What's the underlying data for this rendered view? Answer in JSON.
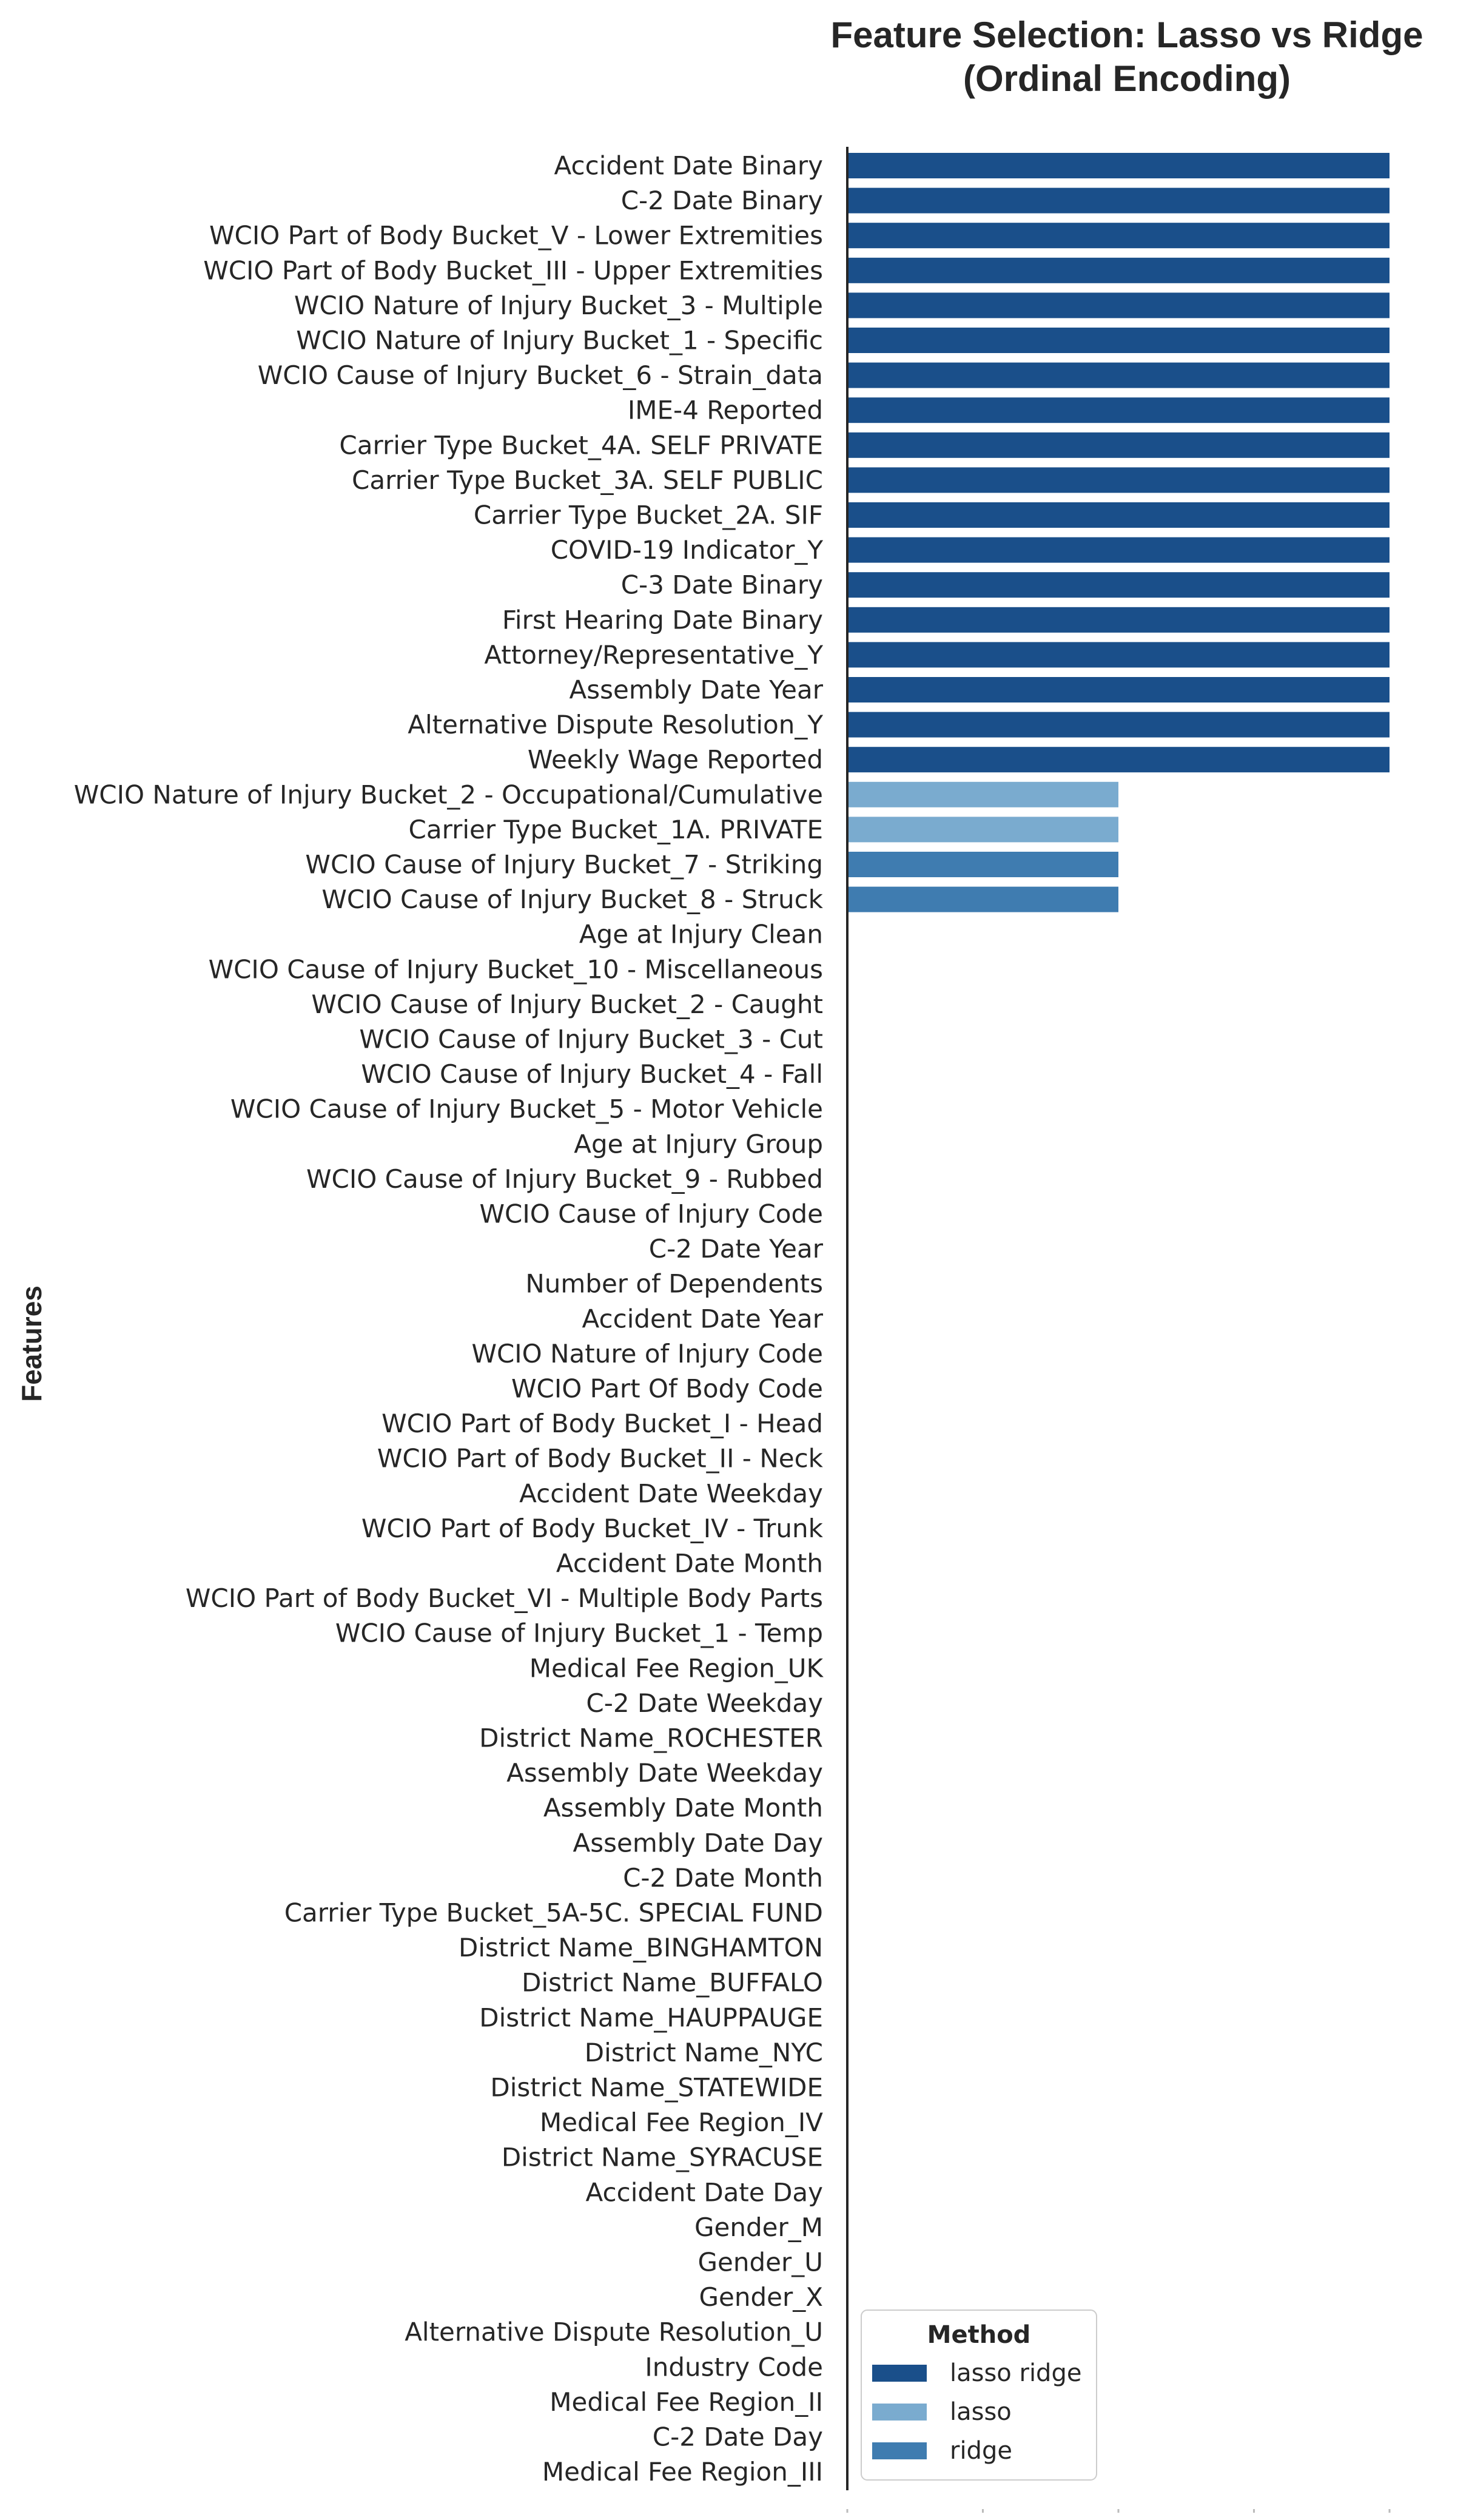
{
  "chart_data": {
    "type": "bar",
    "orientation": "horizontal",
    "title": "Feature Selection: Lasso vs Ridge\n(Ordinal Encoding)",
    "ylabel": "Features",
    "xlabel": "",
    "xlim": [
      0,
      1
    ],
    "grid": false,
    "legend": {
      "title": "Method",
      "placement": "bottom-left",
      "entries": [
        {
          "name": "lasso ridge",
          "color": "#1a4f8a"
        },
        {
          "name": "lasso",
          "color": "#7aabcf"
        },
        {
          "name": "ridge",
          "color": "#3f7cb0"
        }
      ]
    },
    "categories": [
      "Accident Date Binary",
      "C-2 Date Binary",
      "WCIO Part of Body Bucket_V - Lower Extremities",
      "WCIO Part of Body Bucket_III - Upper Extremities",
      "WCIO Nature of Injury Bucket_3 - Multiple",
      "WCIO Nature of Injury Bucket_1 - Specific",
      "WCIO Cause of Injury Bucket_6 - Strain_data",
      "IME-4 Reported",
      "Carrier Type Bucket_4A. SELF PRIVATE",
      "Carrier Type Bucket_3A. SELF PUBLIC",
      "Carrier Type Bucket_2A. SIF",
      "COVID-19 Indicator_Y",
      "C-3 Date Binary",
      "First Hearing Date Binary",
      "Attorney/Representative_Y",
      "Assembly Date Year",
      "Alternative Dispute Resolution_Y",
      "Weekly Wage Reported",
      "WCIO Nature of Injury Bucket_2 - Occupational/Cumulative",
      "Carrier Type Bucket_1A. PRIVATE",
      "WCIO Cause of Injury Bucket_7 - Striking",
      "WCIO Cause of Injury Bucket_8 - Struck",
      "Age at Injury Clean",
      "WCIO Cause of Injury Bucket_10 - Miscellaneous",
      "WCIO Cause of Injury Bucket_2 - Caught",
      "WCIO Cause of Injury Bucket_3 - Cut",
      "WCIO Cause of Injury Bucket_4 - Fall",
      "WCIO Cause of Injury Bucket_5 - Motor Vehicle",
      "Age at Injury Group",
      "WCIO Cause of Injury Bucket_9 - Rubbed",
      "WCIO Cause of Injury Code",
      "C-2 Date Year",
      "Number of Dependents",
      "Accident Date Year",
      "WCIO Nature of Injury Code",
      "WCIO Part Of Body Code",
      "WCIO Part of Body Bucket_I - Head",
      "WCIO Part of Body Bucket_II - Neck",
      "Accident Date Weekday",
      "WCIO Part of Body Bucket_IV - Trunk",
      "Accident Date Month",
      "WCIO Part of Body Bucket_VI - Multiple Body Parts",
      "WCIO Cause of Injury Bucket_1 - Temp",
      "Medical Fee Region_UK",
      "C-2 Date Weekday",
      "District Name_ROCHESTER",
      "Assembly Date Weekday",
      "Assembly Date Month",
      "Assembly Date Day",
      "C-2 Date Month",
      "Carrier Type Bucket_5A-5C. SPECIAL FUND",
      "District Name_BINGHAMTON",
      "District Name_BUFFALO",
      "District Name_HAUPPAUGE",
      "District Name_NYC",
      "District Name_STATEWIDE",
      "Medical Fee Region_IV",
      "District Name_SYRACUSE",
      "Accident Date Day",
      "Gender_M",
      "Gender_U",
      "Gender_X",
      "Alternative Dispute Resolution_U",
      "Industry Code",
      "Medical Fee Region_II",
      "C-2 Date Day",
      "Medical Fee Region_III"
    ],
    "values": [
      1,
      1,
      1,
      1,
      1,
      1,
      1,
      1,
      1,
      1,
      1,
      1,
      1,
      1,
      1,
      1,
      1,
      1,
      0.5,
      0.5,
      0.5,
      0.5,
      0,
      0,
      0,
      0,
      0,
      0,
      0,
      0,
      0,
      0,
      0,
      0,
      0,
      0,
      0,
      0,
      0,
      0,
      0,
      0,
      0,
      0,
      0,
      0,
      0,
      0,
      0,
      0,
      0,
      0,
      0,
      0,
      0,
      0,
      0,
      0,
      0,
      0,
      0,
      0,
      0,
      0,
      0,
      0,
      0
    ],
    "methods": [
      "lasso ridge",
      "lasso ridge",
      "lasso ridge",
      "lasso ridge",
      "lasso ridge",
      "lasso ridge",
      "lasso ridge",
      "lasso ridge",
      "lasso ridge",
      "lasso ridge",
      "lasso ridge",
      "lasso ridge",
      "lasso ridge",
      "lasso ridge",
      "lasso ridge",
      "lasso ridge",
      "lasso ridge",
      "lasso ridge",
      "lasso",
      "lasso",
      "ridge",
      "ridge"
    ]
  }
}
